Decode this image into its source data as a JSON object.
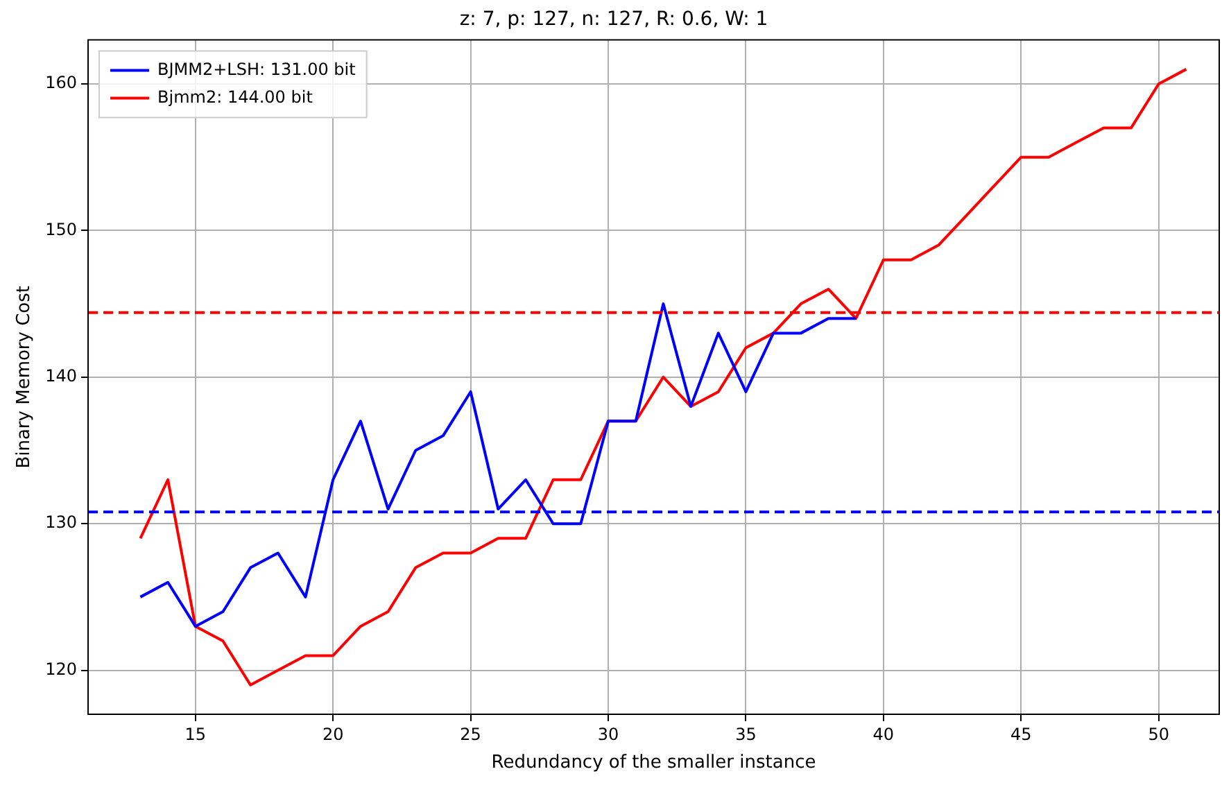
{
  "chart_data": {
    "type": "line",
    "title": "z: 7, p: 127, n: 127, R: 0.6, W: 1",
    "xlabel": "Redundancy of the smaller instance",
    "ylabel": "Binary Memory Cost",
    "x": [
      13,
      14,
      15,
      16,
      17,
      18,
      19,
      20,
      21,
      22,
      23,
      24,
      25,
      26,
      27,
      28,
      29,
      30,
      31,
      32,
      33,
      34,
      35,
      36,
      37,
      38,
      39,
      40,
      41,
      42,
      43,
      44,
      45,
      46,
      47,
      48,
      49,
      50,
      51
    ],
    "series": [
      {
        "name": "BJMM2+LSH: 131.00 bit",
        "color": "#0000ff",
        "values": [
          125,
          126,
          123,
          124,
          127,
          128,
          125,
          133,
          137,
          131,
          135,
          136,
          139,
          131,
          133,
          130,
          130,
          137,
          137,
          145,
          138,
          143,
          139,
          143,
          143,
          144,
          144,
          null,
          null,
          null,
          null,
          null,
          null,
          null,
          null,
          null,
          null,
          null,
          null
        ]
      },
      {
        "name": "Bjmm2: 144.00 bit",
        "color": "#ff0000",
        "values": [
          129,
          133,
          123,
          122,
          119,
          120,
          121,
          121,
          123,
          124,
          127,
          128,
          128,
          129,
          129,
          133,
          133,
          137,
          137,
          140,
          138,
          139,
          142,
          143,
          145,
          146,
          144,
          148,
          148,
          149,
          151,
          153,
          155,
          155,
          156,
          157,
          157,
          160,
          161
        ]
      }
    ],
    "ref_lines": [
      {
        "axis": "y",
        "value": 130.8,
        "color": "#0000ff",
        "line_style": "dashed"
      },
      {
        "axis": "y",
        "value": 144.4,
        "color": "#ff0000",
        "line_style": "dashed"
      }
    ],
    "xlim": [
      11.1,
      52.2
    ],
    "ylim": [
      117,
      163
    ],
    "xticks": [
      15,
      20,
      25,
      30,
      35,
      40,
      45,
      50
    ],
    "yticks": [
      120,
      130,
      140,
      150,
      160
    ],
    "grid": true,
    "legend": "top left",
    "marker": "none",
    "line_style": "solid"
  }
}
